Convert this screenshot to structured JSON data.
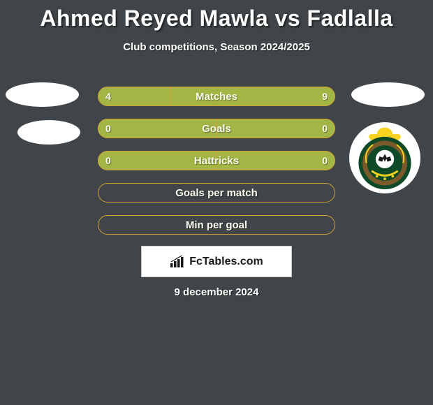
{
  "title": "Ahmed Reyed Mawla vs Fadlalla",
  "subtitle": "Club competitions, Season 2024/2025",
  "date": "9 december 2024",
  "branding": {
    "text": "FcTables.com"
  },
  "colors": {
    "background": "#3f4548",
    "bar_border": "#d1a334",
    "bar_fill": "#a3b545",
    "text": "#ffffff"
  },
  "club_right_badge": {
    "outer": "#f6d321",
    "mid": "#0e4a28",
    "inner": "#7a5a2a",
    "ball": "#ffffff"
  },
  "bars": [
    {
      "label": "Matches",
      "left_value": "4",
      "right_value": "9",
      "left_pct": 30.77,
      "fill_color": "#a3b545",
      "border_color": "#d1a334",
      "bg_color": "#a3b545",
      "split": true
    },
    {
      "label": "Goals",
      "left_value": "0",
      "right_value": "0",
      "left_pct": 50,
      "fill_color": "#a3b545",
      "border_color": "#d1a334",
      "bg_color": "#a3b545",
      "split": true
    },
    {
      "label": "Hattricks",
      "left_value": "0",
      "right_value": "0",
      "left_pct": 50,
      "fill_color": "#a3b545",
      "border_color": "#d1a334",
      "bg_color": "#a3b545",
      "split": true
    },
    {
      "label": "Goals per match",
      "left_value": "",
      "right_value": "",
      "left_pct": 0,
      "fill_color": "#a3b545",
      "border_color": "#d1a334",
      "bg_color": "transparent",
      "split": false
    },
    {
      "label": "Min per goal",
      "left_value": "",
      "right_value": "",
      "left_pct": 0,
      "fill_color": "#a3b545",
      "border_color": "#d1a334",
      "bg_color": "transparent",
      "split": false
    }
  ]
}
